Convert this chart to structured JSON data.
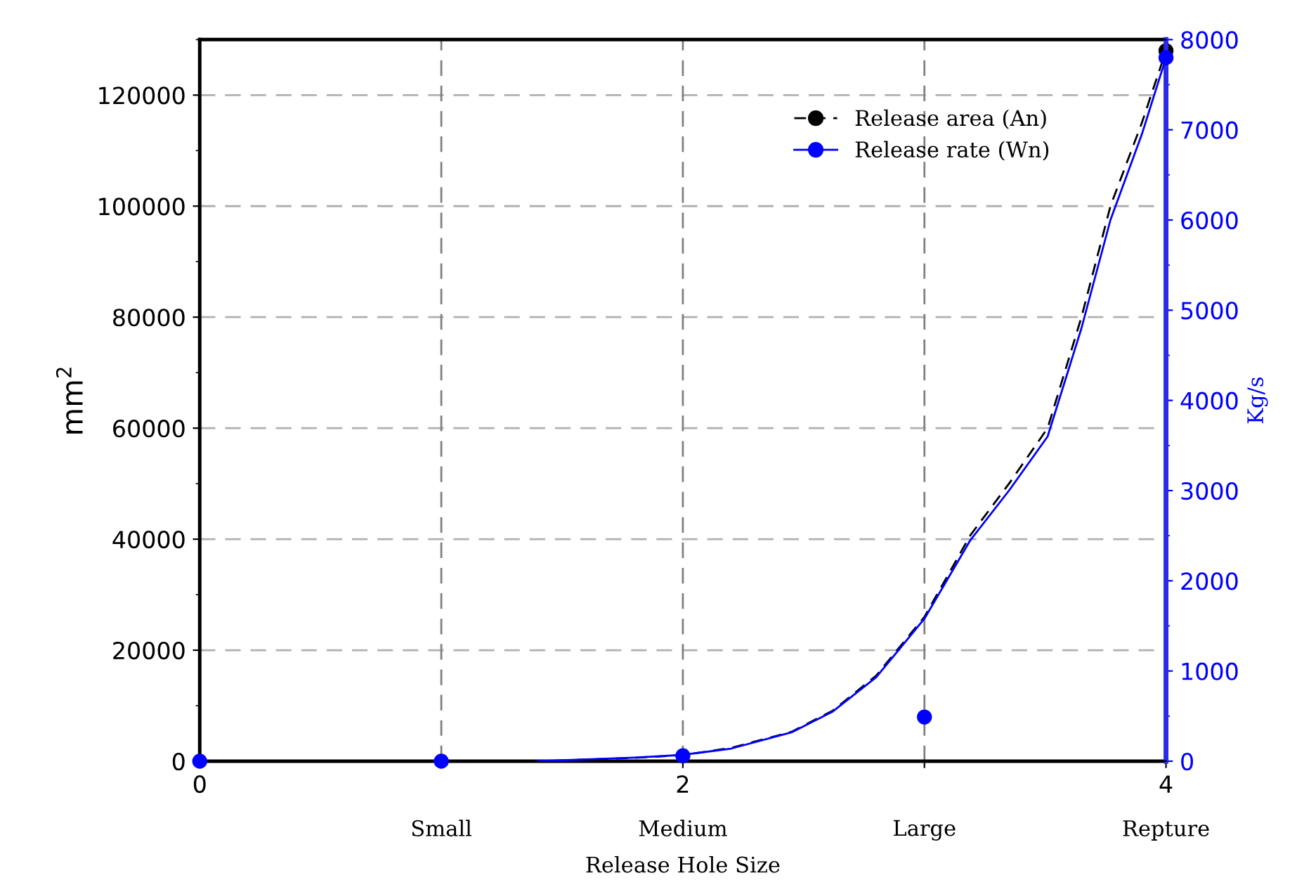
{
  "chart_data": {
    "type": "line",
    "xlabel": "Release Hole Size",
    "ylabel": "mm$^{2}$",
    "y2label": "Kg/s",
    "xlim": [
      0,
      4
    ],
    "xticks": [
      0,
      {
        "value": 1,
        "label": null
      },
      2,
      {
        "value": 3,
        "label": null
      },
      4
    ],
    "annotations": [
      "Small",
      "Medium",
      "Large",
      "Repture"
    ],
    "ylim": [
      0,
      130000
    ],
    "yticks": [
      0,
      20000,
      40000,
      60000,
      80000,
      100000,
      120000
    ],
    "y2lim": [
      0,
      8000
    ],
    "y2ticks": [
      0,
      1000,
      2000,
      3000,
      4000,
      5000,
      6000,
      7000,
      8000
    ],
    "grid": true,
    "legend": "top right",
    "series": [
      {
        "name": "Release area (An)",
        "line_style": "dashed",
        "marker": "none",
        "color": "#000000",
        "x": [
          1.4,
          1.6,
          1.8,
          2.0,
          2.2,
          2.45,
          2.62,
          2.8,
          3.0,
          3.19,
          3.35,
          3.51,
          3.65,
          3.77,
          3.9,
          4.0
        ],
        "values": [
          0,
          300,
          600,
          1100,
          2400,
          5300,
          9100,
          15400,
          26000,
          40700,
          50000,
          60000,
          80000,
          100000,
          115000,
          128000
        ]
      },
      {
        "type": "scatter",
        "marker": "circle",
        "color": "#000000",
        "x": [
          4
        ],
        "values": [
          128000
        ]
      },
      {
        "name": "Release rate (Wn)",
        "axis": "y2",
        "line_style": "solid",
        "marker": "none",
        "color": "#0000ff",
        "x": [
          1.4,
          1.6,
          1.8,
          2.0,
          2.2,
          2.45,
          2.62,
          2.8,
          3.0,
          3.19,
          3.35,
          3.51,
          3.65,
          3.77,
          3.9,
          4.0
        ],
        "values": [
          0,
          20,
          40,
          70,
          140,
          320,
          550,
          930,
          1580,
          2450,
          3000,
          3600,
          4800,
          6000,
          6950,
          7800
        ]
      },
      {
        "type": "scatter",
        "axis": "y2",
        "marker": "circle",
        "color": "#0000ff",
        "x": [
          0,
          1,
          2,
          3,
          4
        ],
        "values": [
          0,
          0,
          60,
          490,
          7800
        ]
      }
    ]
  }
}
